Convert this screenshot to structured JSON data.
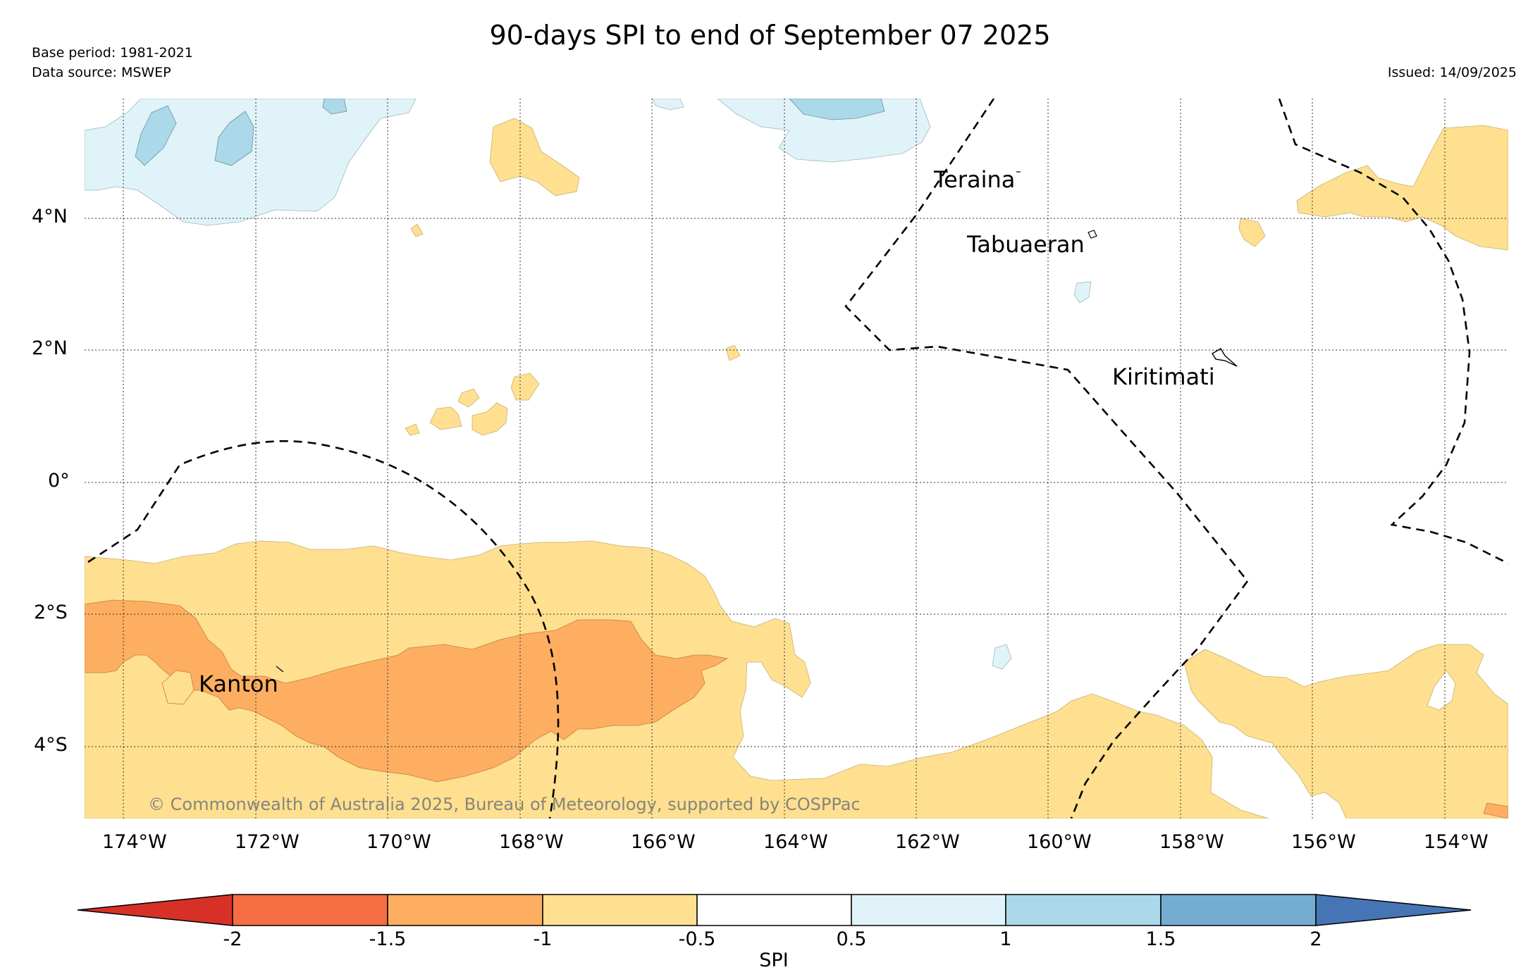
{
  "title": "90-days SPI to end of September 07 2025",
  "base_period": "Base period: 1981-2021",
  "data_source": "Data source: MSWEP",
  "issued": "Issued: 14/09/2025",
  "copyright": "© Commonwealth of Australia 2025, Bureau of Meteorology, supported by COSPPac",
  "place_labels": [
    "Teraina",
    "Tabuaeran",
    "Kiritimati",
    "Kanton"
  ],
  "lon_ticks": [
    "174°W",
    "172°W",
    "170°W",
    "168°W",
    "166°W",
    "164°W",
    "162°W",
    "160°W",
    "158°W",
    "156°W",
    "154°W"
  ],
  "lat_ticks": [
    "4°N",
    "2°N",
    "0°",
    "2°S",
    "4°S"
  ],
  "colorbar": {
    "label": "SPI",
    "ticks": [
      "-2",
      "-1.5",
      "-1",
      "-0.5",
      "0.5",
      "1",
      "1.5",
      "2"
    ],
    "colors": [
      "#d73027",
      "#f46d43",
      "#fdae61",
      "#fee090",
      "#ffffff",
      "#e0f3f8",
      "#abd9e9",
      "#74add1",
      "#4575b4"
    ]
  },
  "map_colors": {
    "very_dry": "#f46d43",
    "moderately_dry": "#fdae61",
    "slightly_dry": "#fee090",
    "near_normal": "#ffffff",
    "slightly_wet": "#e0f3f8",
    "moderately_wet": "#abd9e9"
  }
}
